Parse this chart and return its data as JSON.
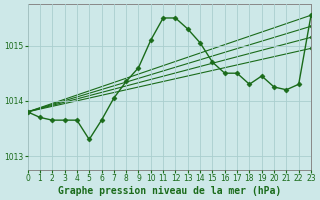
{
  "title": "Graphe pression niveau de la mer (hPa)",
  "bg_color": "#cde8e8",
  "line_color": "#1a6b1a",
  "grid_color": "#b8d8d8",
  "xlim": [
    0,
    23
  ],
  "ylim": [
    1012.75,
    1015.75
  ],
  "yticks": [
    1013,
    1014,
    1015
  ],
  "xticks": [
    0,
    1,
    2,
    3,
    4,
    5,
    6,
    7,
    8,
    9,
    10,
    11,
    12,
    13,
    14,
    15,
    16,
    17,
    18,
    19,
    20,
    21,
    22,
    23
  ],
  "main_series": {
    "x": [
      0,
      1,
      2,
      3,
      4,
      5,
      6,
      7,
      8,
      9,
      10,
      11,
      12,
      13,
      14,
      15,
      16,
      17,
      18,
      19,
      20,
      21,
      22,
      23
    ],
    "y": [
      1013.8,
      1013.7,
      1013.65,
      1013.65,
      1013.65,
      1013.3,
      1013.65,
      1014.05,
      1014.35,
      1014.6,
      1015.1,
      1015.5,
      1015.5,
      1015.3,
      1015.05,
      1014.7,
      1014.5,
      1014.5,
      1014.3,
      1014.45,
      1014.25,
      1014.2,
      1014.3,
      1015.55
    ]
  },
  "trend_lines": [
    {
      "x": [
        0,
        23
      ],
      "y": [
        1013.8,
        1015.55
      ]
    },
    {
      "x": [
        0,
        23
      ],
      "y": [
        1013.8,
        1015.35
      ]
    },
    {
      "x": [
        0,
        23
      ],
      "y": [
        1013.8,
        1015.15
      ]
    },
    {
      "x": [
        0,
        23
      ],
      "y": [
        1013.8,
        1014.95
      ]
    }
  ],
  "marker": "D",
  "marker_size": 2.5,
  "line_width": 1.0,
  "title_fontsize": 7,
  "tick_fontsize": 5.5
}
